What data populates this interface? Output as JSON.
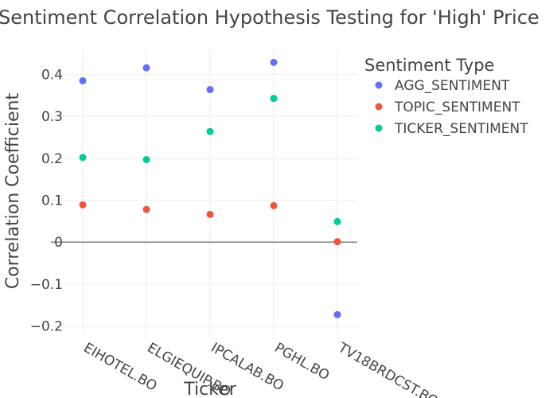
{
  "chart_data": {
    "type": "scatter",
    "title": "Sentiment Correlation Hypothesis Testing for 'High' Price",
    "xlabel": "Ticker",
    "ylabel": "Correlation Coefficient",
    "categories": [
      "EIHOTEL.BO",
      "ELGIEQUIP.BO",
      "IPCALAB.BO",
      "PGHL.BO",
      "TV18BRDCST.BO"
    ],
    "ylim": [
      -0.22,
      0.46
    ],
    "yticks": [
      0.4,
      0.3,
      0.2,
      0.1,
      0,
      -0.1,
      -0.2
    ],
    "ytick_labels": [
      "0.4",
      "0.3",
      "0.2",
      "0.1",
      "0",
      "−0.1",
      "−0.2"
    ],
    "grid": true,
    "legend": {
      "title": "Sentiment Type",
      "placement": "top-right"
    },
    "series": [
      {
        "name": "AGG_SENTIMENT",
        "color": "#636efa",
        "values": [
          0.385,
          0.416,
          0.364,
          0.429,
          -0.173
        ]
      },
      {
        "name": "TOPIC_SENTIMENT",
        "color": "#ef553b",
        "values": [
          0.089,
          0.078,
          0.066,
          0.087,
          0.001
        ]
      },
      {
        "name": "TICKER_SENTIMENT",
        "color": "#00cc96",
        "values": [
          0.202,
          0.197,
          0.264,
          0.343,
          0.049
        ]
      }
    ]
  }
}
